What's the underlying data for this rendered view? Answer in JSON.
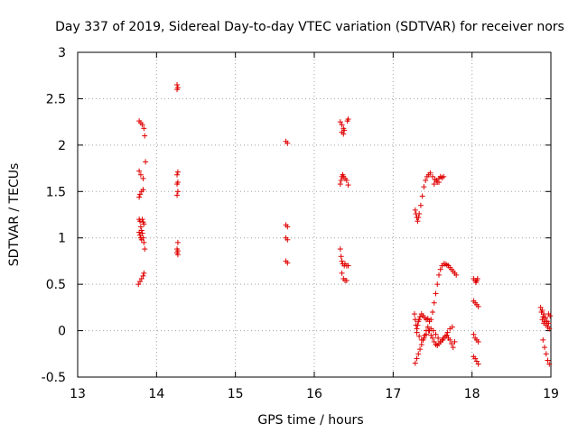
{
  "chart_data": {
    "type": "scatter",
    "title": "Day 337 of 2019, Sidereal Day-to-day VTEC variation (SDTVAR) for receiver nors",
    "xlabel": "GPS time / hours",
    "ylabel": "SDTVAR / TECUs",
    "xlim": [
      13,
      19
    ],
    "ylim": [
      -0.5,
      3
    ],
    "x_ticks": [
      13,
      14,
      15,
      16,
      17,
      18,
      19
    ],
    "x_tick_labels": [
      "13",
      "14",
      "15",
      "16",
      "17",
      "18",
      "19"
    ],
    "y_ticks": [
      -0.5,
      0,
      0.5,
      1,
      1.5,
      2,
      2.5,
      3
    ],
    "y_tick_labels": [
      "-0.5",
      "0",
      "0.5",
      "1",
      "1.5",
      "2",
      "2.5",
      "3"
    ],
    "grid": true,
    "marker": "+",
    "color": "#e00000",
    "series": [
      {
        "name": "SDTVAR",
        "x": [
          13.78,
          13.8,
          13.82,
          13.84,
          13.85,
          13.78,
          13.8,
          13.83,
          13.86,
          13.78,
          13.79,
          13.81,
          13.83,
          13.78,
          13.79,
          13.8,
          13.81,
          13.82,
          13.83,
          13.84,
          13.85,
          13.78,
          13.79,
          13.8,
          13.81,
          13.82,
          13.83,
          13.84,
          13.77,
          13.79,
          13.81,
          13.83,
          13.84,
          14.26,
          14.27,
          14.26,
          14.27,
          14.26,
          14.27,
          14.26,
          14.27,
          14.26,
          14.27,
          14.26,
          14.27,
          14.26,
          14.27,
          15.64,
          15.66,
          15.64,
          15.66,
          15.64,
          15.66,
          15.64,
          15.66,
          16.33,
          16.35,
          16.37,
          16.38,
          16.42,
          16.43,
          16.35,
          16.37,
          16.33,
          16.34,
          16.35,
          16.36,
          16.37,
          16.39,
          16.41,
          16.43,
          16.33,
          16.34,
          16.35,
          16.36,
          16.38,
          16.39,
          16.41,
          16.43,
          16.35,
          16.37,
          16.39,
          16.41,
          17.28,
          17.29,
          17.3,
          17.31,
          17.32,
          17.33,
          17.35,
          17.37,
          17.39,
          17.41,
          17.43,
          17.45,
          17.47,
          17.5,
          17.53,
          17.56,
          17.58,
          17.6,
          17.62,
          17.64,
          17.52,
          17.55,
          17.58,
          17.27,
          17.28,
          17.29,
          17.3,
          17.31,
          17.32,
          17.33,
          17.34,
          17.36,
          17.38,
          17.4,
          17.42,
          17.44,
          17.46,
          17.48,
          17.5,
          17.52,
          17.54,
          17.56,
          17.58,
          17.6,
          17.62,
          17.64,
          17.66,
          17.68,
          17.7,
          17.72,
          17.74,
          17.76,
          17.78,
          17.8,
          17.28,
          17.3,
          17.32,
          17.34,
          17.36,
          17.38,
          17.4,
          17.42,
          17.44,
          17.46,
          17.48,
          17.5,
          17.52,
          17.54,
          17.56,
          17.58,
          17.6,
          17.62,
          17.64,
          17.66,
          17.68,
          17.7,
          17.72,
          17.74,
          17.76,
          17.78,
          17.3,
          17.33,
          17.36,
          17.39,
          17.42,
          17.45,
          17.48,
          17.51,
          17.54,
          17.57,
          17.6,
          17.63,
          17.66,
          17.69,
          17.72,
          17.75,
          18.02,
          18.04,
          18.05,
          18.06,
          18.07,
          18.02,
          18.04,
          18.06,
          18.08,
          18.02,
          18.04,
          18.06,
          18.08,
          18.02,
          18.04,
          18.06,
          18.08,
          18.87,
          18.89,
          18.91,
          18.93,
          18.95,
          18.97,
          18.88,
          18.9,
          18.92,
          18.94,
          18.96,
          18.98,
          18.89,
          18.91,
          18.93,
          18.95,
          18.97,
          18.99,
          18.9,
          18.92,
          18.94,
          18.96,
          18.98
        ],
        "y": [
          2.26,
          2.24,
          2.22,
          2.18,
          2.1,
          1.72,
          1.68,
          1.64,
          1.82,
          1.44,
          1.47,
          1.5,
          1.52,
          1.2,
          1.18,
          1.12,
          1.08,
          1.05,
          1.0,
          0.95,
          0.88,
          1.06,
          1.03,
          1.0,
          0.98,
          1.2,
          1.17,
          1.15,
          0.5,
          0.53,
          0.56,
          0.59,
          0.62,
          2.65,
          2.62,
          2.6,
          1.71,
          1.68,
          1.6,
          1.58,
          1.5,
          1.46,
          0.95,
          0.88,
          0.86,
          0.84,
          0.82,
          2.04,
          2.02,
          1.14,
          1.12,
          1.0,
          0.98,
          0.75,
          0.73,
          2.25,
          2.22,
          2.18,
          2.16,
          2.26,
          2.28,
          2.14,
          2.12,
          1.58,
          1.62,
          1.66,
          1.68,
          1.66,
          1.64,
          1.62,
          1.57,
          0.88,
          0.8,
          0.75,
          0.72,
          0.7,
          0.72,
          0.7,
          0.7,
          0.62,
          0.56,
          0.54,
          0.54,
          1.3,
          1.26,
          1.22,
          1.18,
          1.22,
          1.26,
          1.35,
          1.45,
          1.55,
          1.62,
          1.66,
          1.68,
          1.7,
          1.66,
          1.63,
          1.6,
          1.64,
          1.66,
          1.65,
          1.66,
          1.58,
          1.62,
          1.6,
          0.18,
          0.12,
          0.06,
          0.02,
          0.06,
          0.1,
          0.12,
          0.15,
          0.18,
          0.16,
          0.14,
          0.12,
          0.13,
          0.1,
          0.12,
          0.2,
          0.3,
          0.4,
          0.5,
          0.6,
          0.66,
          0.7,
          0.72,
          0.72,
          0.71,
          0.7,
          0.68,
          0.66,
          0.64,
          0.62,
          0.6,
          -0.35,
          -0.3,
          -0.25,
          -0.2,
          -0.15,
          -0.1,
          -0.05,
          0.0,
          0.04,
          0.0,
          -0.05,
          -0.08,
          -0.12,
          -0.15,
          -0.16,
          -0.14,
          -0.12,
          -0.1,
          -0.08,
          -0.06,
          -0.05,
          -0.08,
          -0.1,
          -0.14,
          -0.18,
          -0.12,
          -0.02,
          -0.06,
          -0.1,
          -0.08,
          -0.04,
          0.0,
          0.02,
          0.0,
          -0.04,
          -0.08,
          -0.12,
          -0.1,
          -0.06,
          -0.02,
          0.02,
          0.04,
          0.56,
          0.54,
          0.52,
          0.54,
          0.56,
          0.32,
          0.3,
          0.28,
          0.26,
          -0.04,
          -0.08,
          -0.1,
          -0.12,
          -0.28,
          -0.3,
          -0.33,
          -0.36,
          0.25,
          0.22,
          0.18,
          0.14,
          0.1,
          0.08,
          0.2,
          0.15,
          0.1,
          0.06,
          0.04,
          0.02,
          0.12,
          0.08,
          0.14,
          0.1,
          0.18,
          0.16,
          -0.1,
          -0.18,
          -0.25,
          -0.32,
          -0.36
        ]
      }
    ]
  }
}
